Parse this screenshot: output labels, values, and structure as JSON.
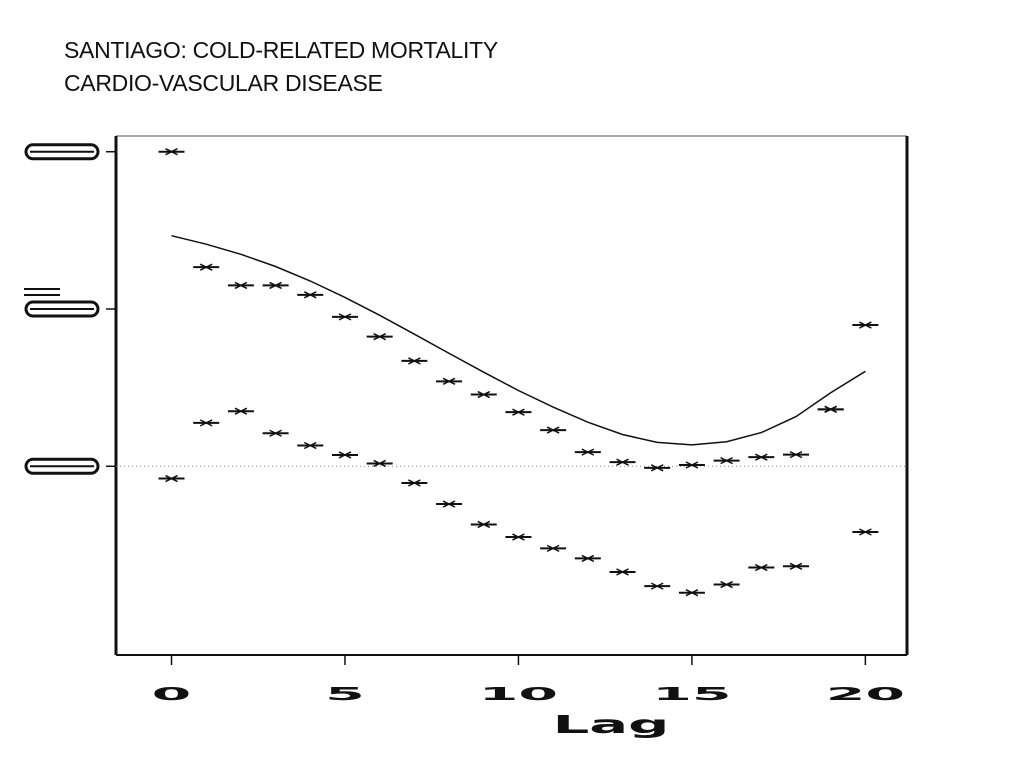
{
  "title": {
    "line1": "SANTIAGO: COLD-RELATED MORTALITY",
    "line2": "CARDIO-VASCULAR DISEASE"
  },
  "chart_data": {
    "type": "line",
    "title": "SANTIAGO: COLD-RELATED MORTALITY CARDIO-VASCULAR DISEASE",
    "xlabel": "Lag",
    "ylabel": "",
    "xlim": [
      -1.6,
      21.2
    ],
    "ylim": [
      -0.06,
      0.105
    ],
    "x_ticks": [
      0,
      5,
      10,
      15,
      20
    ],
    "x_tick_labels": [
      "0",
      "5",
      "10",
      "15",
      "20"
    ],
    "y_ticks": [
      0,
      0.05,
      0.1
    ],
    "y_tick_labels": [
      "",
      "",
      ""
    ],
    "reference_line": 0,
    "grid": false,
    "series": [
      {
        "style": "line",
        "x": [
          0,
          1,
          2,
          3,
          4,
          5,
          6,
          7,
          8,
          9,
          10,
          11,
          12,
          13,
          14,
          15,
          16,
          17,
          18,
          19,
          20
        ],
        "y": [
          0.0733,
          0.0706,
          0.0674,
          0.0635,
          0.0589,
          0.0537,
          0.048,
          0.042,
          0.0359,
          0.0299,
          0.0241,
          0.0188,
          0.014,
          0.0101,
          0.0076,
          0.0068,
          0.0078,
          0.0107,
          0.0158,
          0.0234,
          0.0302
        ]
      },
      {
        "style": "markers",
        "x": [
          0,
          1,
          2,
          3,
          4,
          5,
          6,
          7,
          8,
          9,
          10,
          11,
          12,
          13,
          14,
          15,
          16,
          17,
          18,
          19,
          20
        ],
        "y": [
          0.1,
          0.0633,
          0.0575,
          0.0575,
          0.0545,
          0.0475,
          0.0412,
          0.0335,
          0.027,
          0.0228,
          0.0172,
          0.0115,
          0.0045,
          0.0013,
          -0.0005,
          0.0004,
          0.0018,
          0.0029,
          0.0037,
          0.0181,
          0.0449
        ]
      },
      {
        "style": "markers",
        "x": [
          0,
          1,
          2,
          3,
          4,
          5,
          6,
          7,
          8,
          9,
          10,
          11,
          12,
          13,
          14,
          15,
          16,
          17,
          18,
          19,
          20
        ],
        "y": [
          -0.0039,
          0.0138,
          0.0175,
          0.0105,
          0.0066,
          0.0036,
          0.0009,
          -0.0053,
          -0.012,
          -0.0185,
          -0.0225,
          -0.0261,
          -0.0293,
          -0.0336,
          -0.0381,
          -0.0402,
          -0.0376,
          -0.0322,
          -0.0318,
          0.0181,
          -0.0209
        ]
      }
    ]
  }
}
